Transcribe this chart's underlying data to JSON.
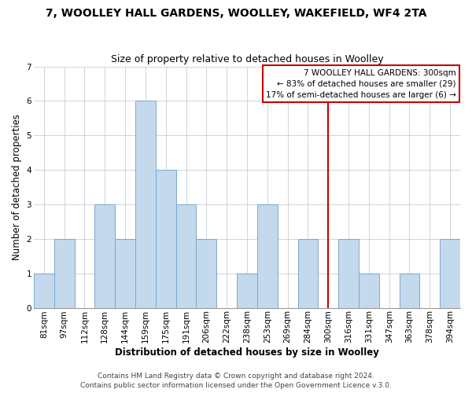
{
  "title": "7, WOOLLEY HALL GARDENS, WOOLLEY, WAKEFIELD, WF4 2TA",
  "subtitle": "Size of property relative to detached houses in Woolley",
  "xlabel": "Distribution of detached houses by size in Woolley",
  "ylabel": "Number of detached properties",
  "bins": [
    "81sqm",
    "97sqm",
    "112sqm",
    "128sqm",
    "144sqm",
    "159sqm",
    "175sqm",
    "191sqm",
    "206sqm",
    "222sqm",
    "238sqm",
    "253sqm",
    "269sqm",
    "284sqm",
    "300sqm",
    "316sqm",
    "331sqm",
    "347sqm",
    "363sqm",
    "378sqm",
    "394sqm"
  ],
  "values": [
    1,
    2,
    0,
    3,
    2,
    6,
    4,
    3,
    2,
    0,
    1,
    3,
    0,
    2,
    0,
    2,
    1,
    0,
    1,
    0,
    2
  ],
  "bar_color": "#c5d9ed",
  "bar_edge_color": "#7aa8cd",
  "bar_edge_width": 0.7,
  "grid_color": "#c8cdd4",
  "vline_x_index": 14,
  "vline_color": "#cc0000",
  "annotation_text": "7 WOOLLEY HALL GARDENS: 300sqm\n← 83% of detached houses are smaller (29)\n17% of semi-detached houses are larger (6) →",
  "annotation_box_color": "#ffffff",
  "annotation_box_edge_color": "#cc0000",
  "footer_line1": "Contains HM Land Registry data © Crown copyright and database right 2024.",
  "footer_line2": "Contains public sector information licensed under the Open Government Licence v.3.0.",
  "ylim": [
    0,
    7
  ],
  "yticks": [
    0,
    1,
    2,
    3,
    4,
    5,
    6,
    7
  ],
  "title_fontsize": 10,
  "subtitle_fontsize": 9,
  "axis_label_fontsize": 8.5,
  "tick_fontsize": 7.5,
  "annotation_fontsize": 7.5,
  "footer_fontsize": 6.5
}
